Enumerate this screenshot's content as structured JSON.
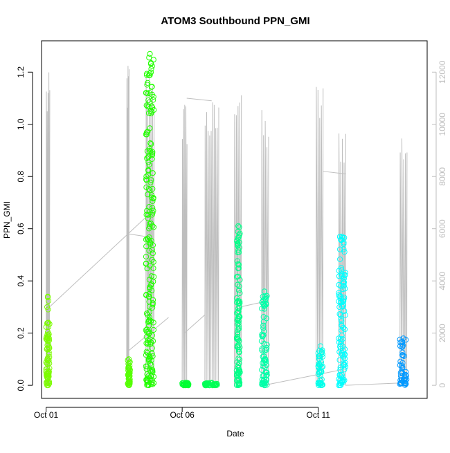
{
  "chart_data": {
    "type": "scatter",
    "title": "ATOM3 Southbound PPN_GMI",
    "xlabel": "Date",
    "ylabel": "PPN_GMI",
    "y_right_label": "",
    "xlim": [
      "2016-09-30T20:00",
      "2016-10-15T00:00"
    ],
    "ylim": [
      -0.05,
      1.32
    ],
    "y2lim": [
      -500,
      13200
    ],
    "x_ticks": [
      {
        "label": "Oct 01",
        "x": "2016-10-01T00:00"
      },
      {
        "label": "Oct 06",
        "x": "2016-10-06T00:00"
      },
      {
        "label": "Oct 11",
        "x": "2016-10-11T00:00"
      }
    ],
    "y_ticks": [
      "0.0",
      "0.2",
      "0.4",
      "0.6",
      "0.8",
      "1.0",
      "1.2"
    ],
    "y2_ticks": [
      "0",
      "2000",
      "4000",
      "6000",
      "8000",
      "10000",
      "12000"
    ],
    "grid": false,
    "legend": "none",
    "colors": {
      "depth_line": "#bebebe",
      "frame": "#000000",
      "right_axis": "#bebebe"
    },
    "series": [
      {
        "kind": "ppn_gmi_points",
        "marker": "open-circle",
        "groups": [
          {
            "x_start": "2016-10-01T00:00",
            "x_end": "2016-10-01T03:00",
            "y_min": 0.0,
            "y_max": 0.34,
            "color": "#7cfc00"
          },
          {
            "x_start": "2016-10-04T00:00",
            "x_end": "2016-10-04T02:00",
            "y_min": 0.0,
            "y_max": 0.1,
            "color": "#55ff00"
          },
          {
            "x_start": "2016-10-04T16:00",
            "x_end": "2016-10-04T23:00",
            "y_min": 0.0,
            "y_max": 1.27,
            "color": "#22ff00"
          },
          {
            "x_start": "2016-10-06T00:00",
            "x_end": "2016-10-06T06:00",
            "y_min": 0.0,
            "y_max": 0.01,
            "color": "#00ff33"
          },
          {
            "x_start": "2016-10-06T20:00",
            "x_end": "2016-10-07T08:00",
            "y_min": 0.0,
            "y_max": 0.01,
            "color": "#00ff55"
          },
          {
            "x_start": "2016-10-08T00:00",
            "x_end": "2016-10-08T03:00",
            "y_min": 0.0,
            "y_max": 0.61,
            "color": "#00ff88"
          },
          {
            "x_start": "2016-10-08T22:00",
            "x_end": "2016-10-09T03:00",
            "y_min": 0.0,
            "y_max": 0.36,
            "color": "#00ffa8"
          },
          {
            "x_start": "2016-10-11T00:00",
            "x_end": "2016-10-11T04:00",
            "y_min": 0.0,
            "y_max": 0.15,
            "color": "#00ffea"
          },
          {
            "x_start": "2016-10-11T18:00",
            "x_end": "2016-10-12T00:00",
            "y_min": 0.0,
            "y_max": 0.57,
            "color": "#00ffff"
          },
          {
            "x_start": "2016-10-14T00:00",
            "x_end": "2016-10-14T06:00",
            "y_min": 0.0,
            "y_max": 0.18,
            "color": "#0099ff"
          }
        ]
      },
      {
        "kind": "depth_line_right_axis",
        "color": "#bebebe",
        "profile_bursts": [
          {
            "x_start": "2016-10-01T00:00",
            "x_end": "2016-10-01T03:00",
            "max": 12000
          },
          {
            "x_start": "2016-10-03T23:00",
            "x_end": "2016-10-04T01:00",
            "max": 12500
          },
          {
            "x_start": "2016-10-04T16:00",
            "x_end": "2016-10-04T23:00",
            "max": 12400
          },
          {
            "x_start": "2016-10-06T00:00",
            "x_end": "2016-10-06T04:00",
            "max": 11000
          },
          {
            "x_start": "2016-10-06T20:00",
            "x_end": "2016-10-07T08:00",
            "max": 11000
          },
          {
            "x_start": "2016-10-07T22:00",
            "x_end": "2016-10-08T04:00",
            "max": 12200
          },
          {
            "x_start": "2016-10-08T22:00",
            "x_end": "2016-10-09T04:00",
            "max": 10600
          },
          {
            "x_start": "2016-10-10T22:00",
            "x_end": "2016-10-11T04:00",
            "max": 11700
          },
          {
            "x_start": "2016-10-11T18:00",
            "x_end": "2016-10-12T00:00",
            "max": 10200
          },
          {
            "x_start": "2016-10-14T00:00",
            "x_end": "2016-10-14T06:00",
            "max": 10000
          }
        ],
        "transits": [
          {
            "from": {
              "x": "2016-10-01T03:00",
              "y": 3000
            },
            "to": {
              "x": "2016-10-04T15:00",
              "y": 6400
            }
          },
          {
            "from": {
              "x": "2016-10-04T01:00",
              "y": 5800
            },
            "to": {
              "x": "2016-10-04T16:00",
              "y": 5700
            }
          },
          {
            "from": {
              "x": "2016-10-04T00:00",
              "y": 1300
            },
            "to": {
              "x": "2016-10-05T12:00",
              "y": 2600
            }
          },
          {
            "from": {
              "x": "2016-10-06T04:00",
              "y": 11000
            },
            "to": {
              "x": "2016-10-07T02:00",
              "y": 10900
            }
          },
          {
            "from": {
              "x": "2016-10-06T02:00",
              "y": 2000
            },
            "to": {
              "x": "2016-10-06T20:00",
              "y": 2700
            }
          },
          {
            "from": {
              "x": "2016-10-08T03:00",
              "y": 3000
            },
            "to": {
              "x": "2016-10-09T00:00",
              "y": 3200
            }
          },
          {
            "from": {
              "x": "2016-10-09T00:00",
              "y": 0
            },
            "to": {
              "x": "2016-10-11T21:00",
              "y": 600
            }
          },
          {
            "from": {
              "x": "2016-10-11T04:00",
              "y": 8200
            },
            "to": {
              "x": "2016-10-12T00:00",
              "y": 8100
            }
          },
          {
            "from": {
              "x": "2016-10-12T00:00",
              "y": 0
            },
            "to": {
              "x": "2016-10-14T06:00",
              "y": 100
            }
          }
        ]
      }
    ]
  }
}
